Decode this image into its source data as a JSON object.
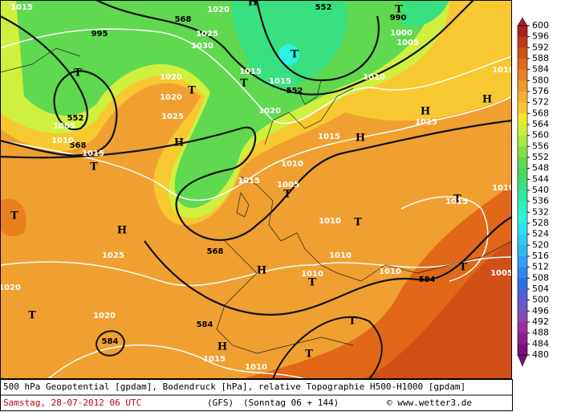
{
  "map": {
    "labels": [
      "552",
      "568",
      "552",
      "552",
      "568",
      "568",
      "584",
      "584",
      "584",
      "T",
      "T",
      "T",
      "T",
      "T",
      "T",
      "T",
      "T",
      "T",
      "T",
      "T",
      "T",
      "T",
      "T",
      "T",
      "H",
      "H",
      "H",
      "H",
      "H",
      "H",
      "H",
      "H",
      "1015",
      "995",
      "1020",
      "1025",
      "1030",
      "1020",
      "1020",
      "1025",
      "1015",
      "1015",
      "1020",
      "1010",
      "1005",
      "1000",
      "990",
      "1015",
      "1015",
      "1010",
      "1005",
      "1015",
      "1015",
      "1010",
      "1005",
      "1025",
      "1020",
      "1020",
      "1010",
      "1010",
      "1010",
      "1010",
      "1005",
      "1010",
      "1010",
      "1015",
      "1010",
      "1015"
    ]
  },
  "legend": {
    "labels": [
      600,
      596,
      592,
      588,
      584,
      580,
      576,
      572,
      568,
      564,
      560,
      556,
      552,
      548,
      544,
      540,
      536,
      532,
      528,
      524,
      520,
      516,
      512,
      508,
      504,
      500,
      496,
      492,
      488,
      484,
      480
    ],
    "colors": [
      "#a82020",
      "#c03818",
      "#d05018",
      "#e06818",
      "#e88020",
      "#f09828",
      "#f8b030",
      "#f8c830",
      "#f0e830",
      "#d0f040",
      "#a8e840",
      "#80e040",
      "#60d850",
      "#48d860",
      "#38e080",
      "#30e8a0",
      "#30f0c0",
      "#30f0e0",
      "#30e0f0",
      "#30ccf0",
      "#30b8f0",
      "#30a0f0",
      "#3088e8",
      "#3070e0",
      "#4a60d8",
      "#6a5ac8",
      "#8a4ab5",
      "#9a2da0",
      "#8c1e8c",
      "#7a0f7a"
    ]
  },
  "footer": {
    "description": "500 hPa Geopotential [gpdam], Bodendruck [hPa], relative Topographie H500-H1000 [gpdam]",
    "date": "Samstag, 28-07-2012  06 UTC",
    "model": "(GFS)",
    "forecast": "(Sonntag 06 + 144)",
    "credit": "© www.wetter3.de"
  }
}
